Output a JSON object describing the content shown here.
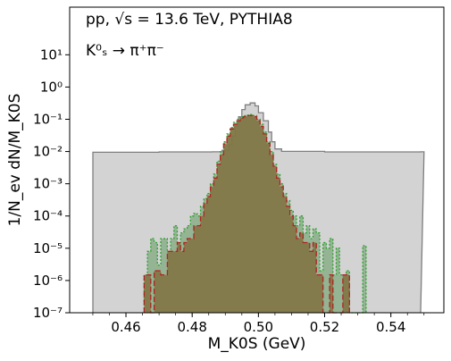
{
  "chart_data": {
    "type": "histogram",
    "title": "",
    "annotations": [
      {
        "id": "line1",
        "text": "pp, √s = 13.6 TeV, PYTHIA8"
      },
      {
        "id": "line2",
        "text": "K⁰ₛ → π⁺π⁻"
      }
    ],
    "xlabel": "M_K0S (GeV)",
    "ylabel": "1/N_ev dN/M_K0S",
    "xlim": [
      0.443,
      0.556
    ],
    "ylim": [
      1e-07,
      300
    ],
    "yscale": "log",
    "x_ticks": [
      "0.46",
      "0.48",
      "0.50",
      "0.52",
      "0.54"
    ],
    "x_tick_values": [
      0.46,
      0.48,
      0.5,
      0.52,
      0.54
    ],
    "y_ticks": [
      "10¹",
      "10⁰",
      "10⁻¹",
      "10⁻²",
      "10⁻³",
      "10⁻⁴",
      "10⁻⁵",
      "10⁻⁶",
      "10⁻⁷"
    ],
    "y_tick_exponents": [
      1,
      0,
      -1,
      -2,
      -3,
      -4,
      -5,
      -6,
      -7
    ],
    "grid": false,
    "series": [
      {
        "style": "gray-filled-solid",
        "color": "#d3d3d3",
        "edge": "#7f7f7f",
        "points": [
          [
            0.45,
            0.0095
          ],
          [
            0.47,
            0.0097
          ],
          [
            0.486,
            0.0098
          ],
          [
            0.489,
            0.011
          ],
          [
            0.491,
            0.016
          ],
          [
            0.492,
            0.03
          ],
          [
            0.493,
            0.06
          ],
          [
            0.494,
            0.12
          ],
          [
            0.495,
            0.2
          ],
          [
            0.496,
            0.28
          ],
          [
            0.4975,
            0.32
          ],
          [
            0.499,
            0.26
          ],
          [
            0.5,
            0.16
          ],
          [
            0.5015,
            0.09
          ],
          [
            0.503,
            0.04
          ],
          [
            0.504,
            0.02
          ],
          [
            0.505,
            0.012
          ],
          [
            0.507,
            0.0101
          ],
          [
            0.52,
            0.0097
          ],
          [
            0.549,
            0.0098
          ]
        ]
      },
      {
        "style": "green-filled-dotted",
        "color": "#7faa7f",
        "edge": "#2ca02c",
        "points": [
          [
            0.4655,
            1.5e-06
          ],
          [
            0.4665,
            8e-06
          ],
          [
            0.4675,
            2e-05
          ],
          [
            0.4685,
            1.5e-05
          ],
          [
            0.4695,
            3e-06
          ],
          [
            0.4705,
            2e-05
          ],
          [
            0.4715,
            2e-05
          ],
          [
            0.4725,
            8e-06
          ],
          [
            0.4735,
            2e-05
          ],
          [
            0.4745,
            5e-05
          ],
          [
            0.4755,
            1.5e-05
          ],
          [
            0.4765,
            3e-05
          ],
          [
            0.4775,
            4e-05
          ],
          [
            0.4785,
            5e-05
          ],
          [
            0.4795,
            0.0001
          ],
          [
            0.4805,
            0.00012
          ],
          [
            0.4815,
            0.0001
          ],
          [
            0.4825,
            0.0002
          ],
          [
            0.4835,
            0.00035
          ],
          [
            0.4845,
            0.0005
          ],
          [
            0.4855,
            0.001
          ],
          [
            0.4865,
            0.002
          ],
          [
            0.4875,
            0.005
          ],
          [
            0.4885,
            0.01
          ],
          [
            0.4895,
            0.02
          ],
          [
            0.4905,
            0.035
          ],
          [
            0.4915,
            0.055
          ],
          [
            0.4925,
            0.08
          ],
          [
            0.4935,
            0.1
          ],
          [
            0.4945,
            0.12
          ],
          [
            0.4955,
            0.13
          ],
          [
            0.4965,
            0.135
          ],
          [
            0.4975,
            0.14
          ],
          [
            0.4985,
            0.13
          ],
          [
            0.4995,
            0.1
          ],
          [
            0.5005,
            0.07
          ],
          [
            0.5015,
            0.04
          ],
          [
            0.5025,
            0.02
          ],
          [
            0.5035,
            0.01
          ],
          [
            0.5045,
            0.004
          ],
          [
            0.5055,
            0.002
          ],
          [
            0.5065,
            0.001
          ],
          [
            0.5075,
            0.0005
          ],
          [
            0.5085,
            0.0003
          ],
          [
            0.5095,
            0.00015
          ],
          [
            0.5105,
            0.0001
          ],
          [
            0.5115,
            5e-05
          ],
          [
            0.5125,
            0.0001
          ],
          [
            0.5135,
            3e-05
          ],
          [
            0.5145,
            5e-05
          ],
          [
            0.5155,
            2e-05
          ],
          [
            0.5165,
            4e-05
          ],
          [
            0.5175,
            3e-05
          ],
          [
            0.5185,
            2e-06
          ],
          [
            0.5195,
            1.5e-05
          ],
          [
            0.5205,
            1e-05
          ],
          [
            0.5215,
            2e-05
          ],
          [
            0.5225,
            1.5e-06
          ],
          [
            0.5235,
            1e-05
          ],
          [
            0.5245,
            1.5e-06
          ],
          [
            0.5255,
            1.5e-06
          ],
          [
            0.5265,
            2e-06
          ],
          [
            0.5275,
            1e-07
          ],
          [
            0.5285,
            1e-07
          ],
          [
            0.5295,
            1e-07
          ],
          [
            0.5305,
            1e-07
          ],
          [
            0.5315,
            1.2e-05
          ]
        ]
      },
      {
        "style": "red-filled-dashed",
        "color": "#806d3a",
        "edge": "#b22222",
        "points": [
          [
            0.4655,
            1.5e-06
          ],
          [
            0.4665,
            1.5e-06
          ],
          [
            0.4675,
            1e-07
          ],
          [
            0.4685,
            2e-06
          ],
          [
            0.4695,
            2e-06
          ],
          [
            0.4705,
            1.5e-06
          ],
          [
            0.4715,
            1.5e-06
          ],
          [
            0.4725,
            8e-06
          ],
          [
            0.4735,
            8e-06
          ],
          [
            0.4745,
            8e-06
          ],
          [
            0.4755,
            1.5e-05
          ],
          [
            0.4765,
            8e-06
          ],
          [
            0.4775,
            1.5e-05
          ],
          [
            0.4785,
            2e-05
          ],
          [
            0.4795,
            2e-05
          ],
          [
            0.4805,
            5e-05
          ],
          [
            0.4815,
            5e-05
          ],
          [
            0.4825,
            0.0001
          ],
          [
            0.4835,
            0.00025
          ],
          [
            0.4845,
            0.0004
          ],
          [
            0.4855,
            0.0008
          ],
          [
            0.4865,
            0.0015
          ],
          [
            0.4875,
            0.004
          ],
          [
            0.4885,
            0.008
          ],
          [
            0.4895,
            0.017
          ],
          [
            0.4905,
            0.03
          ],
          [
            0.4915,
            0.05
          ],
          [
            0.4925,
            0.07
          ],
          [
            0.4935,
            0.09
          ],
          [
            0.4945,
            0.11
          ],
          [
            0.4955,
            0.12
          ],
          [
            0.4965,
            0.13
          ],
          [
            0.4975,
            0.13
          ],
          [
            0.4985,
            0.12
          ],
          [
            0.4995,
            0.09
          ],
          [
            0.5005,
            0.06
          ],
          [
            0.5015,
            0.035
          ],
          [
            0.5025,
            0.018
          ],
          [
            0.5035,
            0.008
          ],
          [
            0.5045,
            0.0035
          ],
          [
            0.5055,
            0.0015
          ],
          [
            0.5065,
            0.0008
          ],
          [
            0.5075,
            0.0004
          ],
          [
            0.5085,
            0.0002
          ],
          [
            0.5095,
            0.0001
          ],
          [
            0.5105,
            5e-05
          ],
          [
            0.5115,
            2e-05
          ],
          [
            0.5125,
            3e-05
          ],
          [
            0.5135,
            1.5e-05
          ],
          [
            0.5145,
            1.5e-05
          ],
          [
            0.5155,
            8e-06
          ],
          [
            0.5165,
            1.5e-05
          ],
          [
            0.5175,
            1.5e-06
          ],
          [
            0.5185,
            1.5e-06
          ],
          [
            0.5195,
            1e-07
          ],
          [
            0.5205,
            1e-07
          ],
          [
            0.5215,
            1.5e-06
          ],
          [
            0.5225,
            1e-07
          ],
          [
            0.5235,
            1e-07
          ],
          [
            0.5245,
            1e-07
          ],
          [
            0.5255,
            1.5e-06
          ],
          [
            0.5265,
            1.5e-06
          ]
        ]
      }
    ]
  }
}
